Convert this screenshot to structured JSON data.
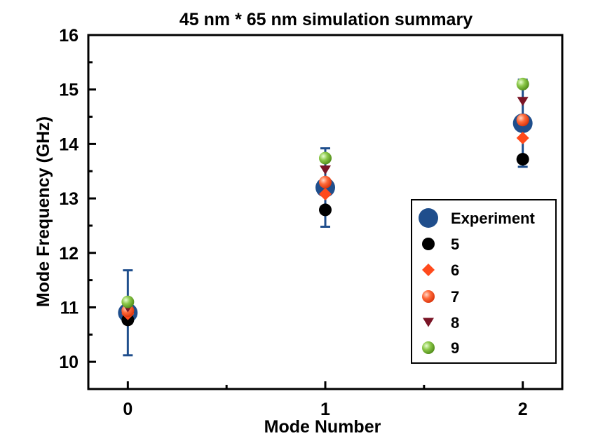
{
  "chart_data": {
    "type": "scatter",
    "title": "45 nm * 65 nm simulation summary",
    "xlabel": "Mode Number",
    "ylabel": "Mode Frequency (GHz)",
    "xlim": [
      -0.2,
      2.2
    ],
    "ylim": [
      9.5,
      16
    ],
    "x_ticks": [
      0,
      1,
      2
    ],
    "x_minor_ticks": [
      0.5,
      1.5
    ],
    "y_ticks": [
      10,
      11,
      12,
      13,
      14,
      15,
      16
    ],
    "y_minor_ticks": [
      10.5,
      11.5,
      12.5,
      13.5,
      14.5,
      15.5
    ],
    "grid": false,
    "legend_position": "bottom-right",
    "x": [
      0,
      1,
      2
    ],
    "series": [
      {
        "name": "Experiment",
        "values": [
          10.9,
          13.2,
          14.38
        ],
        "error": [
          0.78,
          0.72,
          0.8
        ],
        "marker": "circle-large",
        "color": "#1f4e8c"
      },
      {
        "name": "5",
        "values": [
          10.77,
          12.79,
          13.72
        ],
        "marker": "circle",
        "color": "#000000"
      },
      {
        "name": "6",
        "values": [
          10.88,
          13.08,
          14.11
        ],
        "marker": "diamond",
        "color": "#ff4a1c"
      },
      {
        "name": "7",
        "values": [
          10.94,
          13.3,
          14.44
        ],
        "marker": "circle-glossy",
        "color": "#ff5a2a"
      },
      {
        "name": "8",
        "values": [
          10.99,
          13.52,
          14.78
        ],
        "marker": "triangle-down",
        "color": "#7a1426"
      },
      {
        "name": "9",
        "values": [
          11.1,
          13.74,
          15.1
        ],
        "marker": "circle-glossy",
        "color": "#6ab02a"
      }
    ]
  }
}
